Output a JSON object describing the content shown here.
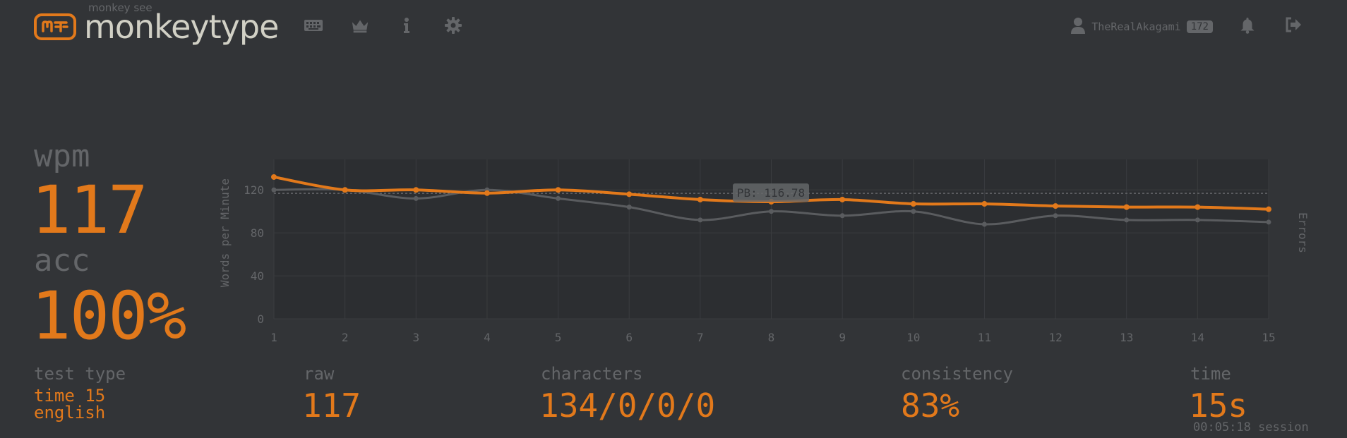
{
  "header": {
    "logo_sub": "monkey see",
    "logo_text": "monkeytype",
    "nav_icons": [
      "keyboard-icon",
      "crown-icon",
      "info-icon",
      "gear-icon"
    ],
    "username": "TheRealAkagami",
    "level": "172"
  },
  "stats": {
    "wpm_label": "wpm",
    "wpm_value": "117",
    "acc_label": "acc",
    "acc_value": "100%",
    "test_type_label": "test type",
    "test_type_mode": "time 15",
    "test_type_language": "english",
    "raw_label": "raw",
    "raw_value": "117",
    "characters_label": "characters",
    "characters_value": "134/0/0/0",
    "consistency_label": "consistency",
    "consistency_value": "83%",
    "time_label": "time",
    "time_value": "15s",
    "session_time": "00:05:18 session"
  },
  "colors": {
    "background": "#323437",
    "accent": "#e2791b",
    "sub": "#646669",
    "text": "#d1d0c5"
  },
  "chart_data": {
    "type": "line",
    "ylabel": "Words per Minute",
    "y2label": "Errors",
    "ylim": [
      0,
      120
    ],
    "yticks": [
      0,
      40,
      80,
      120
    ],
    "x": [
      1,
      2,
      3,
      4,
      5,
      6,
      7,
      8,
      9,
      10,
      11,
      12,
      13,
      14,
      15
    ],
    "series": [
      {
        "values": [
          132,
          120,
          120,
          117,
          120,
          116,
          111,
          109,
          111,
          107,
          107,
          105,
          104,
          104,
          102
        ]
      },
      {
        "values": [
          120,
          120,
          112,
          120,
          112,
          104,
          92,
          100,
          96,
          100,
          88,
          96,
          92,
          92,
          90
        ]
      }
    ],
    "pb_value": 116.78,
    "pb_label": "PB: 116.78",
    "grid": true
  }
}
